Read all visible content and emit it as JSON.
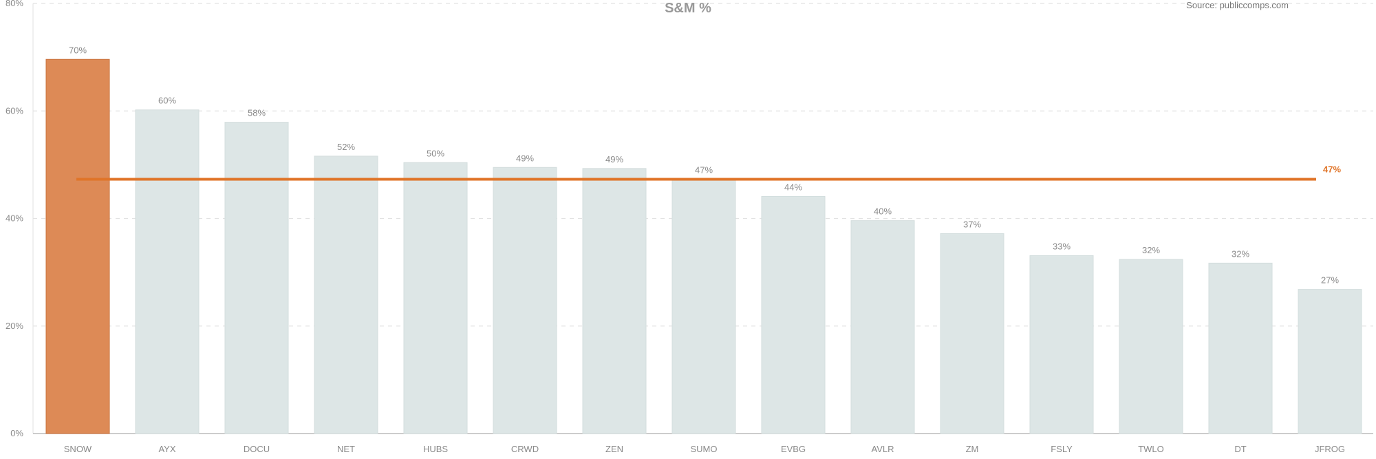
{
  "chart_data": {
    "type": "bar",
    "title": "S&M %",
    "source": "Source: publiccomps.com",
    "categories": [
      "SNOW",
      "AYX",
      "DOCU",
      "NET",
      "HUBS",
      "CRWD",
      "ZEN",
      "SUMO",
      "EVBG",
      "AVLR",
      "ZM",
      "FSLY",
      "TWLO",
      "DT",
      "JFROG"
    ],
    "values": [
      69.6,
      60.2,
      57.9,
      51.6,
      50.4,
      49.5,
      49.3,
      47.3,
      44.1,
      39.6,
      37.2,
      33.1,
      32.4,
      31.7,
      26.8
    ],
    "data_labels": [
      "70%",
      "60%",
      "58%",
      "52%",
      "50%",
      "49%",
      "49%",
      "47%",
      "44%",
      "40%",
      "37%",
      "33%",
      "32%",
      "32%",
      "27%"
    ],
    "highlight_index": 0,
    "ylim": [
      0,
      80
    ],
    "yticks": [
      0,
      20,
      40,
      60,
      80
    ],
    "ytick_labels": [
      "0%",
      "20%",
      "40%",
      "60%",
      "80%"
    ],
    "grid": true,
    "average": {
      "value": 47.3,
      "label": "47%"
    },
    "colors": {
      "highlight_bar": "#dd8a56",
      "highlight_bar_border": "#c9703a",
      "bar": "#dde6e6",
      "bar_border": "#d3dddd",
      "average_line": "#e07428",
      "average_label": "#e07428",
      "grid": "#e2e2e2",
      "axis": "#bbbbbb"
    }
  }
}
